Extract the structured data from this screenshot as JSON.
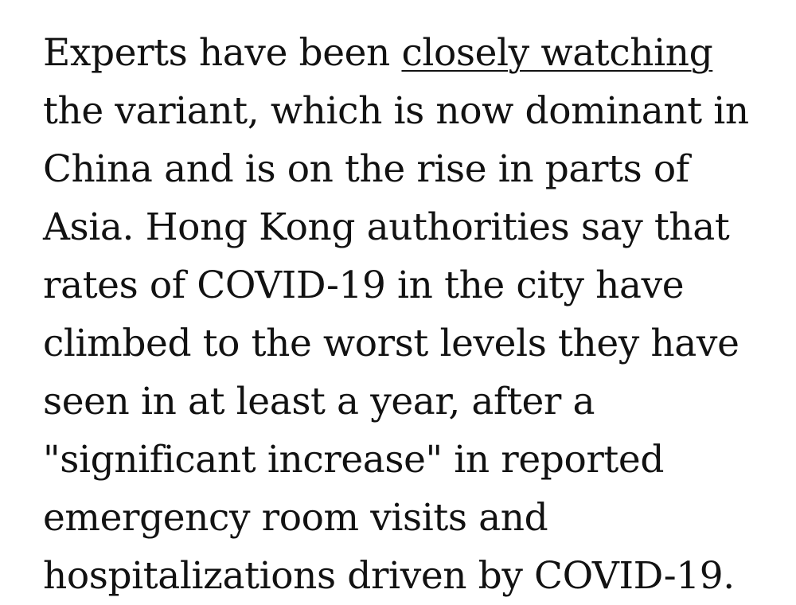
{
  "article": {
    "paragraph": {
      "before_link": "Experts have been ",
      "link_text": "closely watching",
      "lines": [
        "the variant, which is now dominant in",
        "China and is on the rise in parts of",
        "Asia. Hong Kong authorities say that",
        "rates of COVID-19 in the city have",
        "climbed to the worst levels they have",
        "seen in at least a year, after a",
        "\"significant increase\" in reported",
        "emergency room visits and",
        "hospitalizations driven by COVID-19."
      ]
    }
  }
}
